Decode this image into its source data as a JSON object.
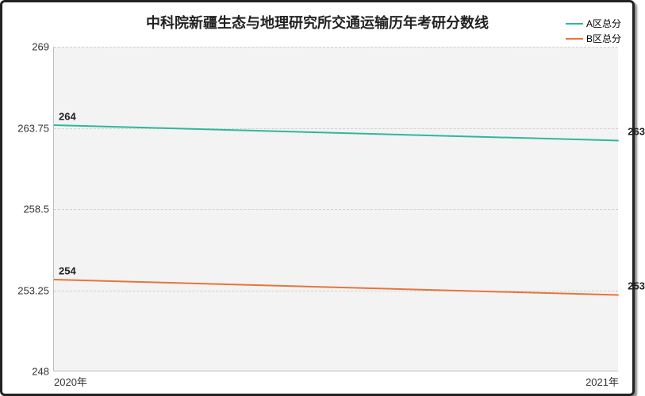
{
  "chart": {
    "type": "line",
    "title": "中科院新疆生态与地理研究所交通运输历年考研分数线",
    "title_fontsize": 18,
    "title_color": "#222222",
    "background_color": "#ffffff",
    "plot_background": "#f3f3f3",
    "outer_border_color": "#222222",
    "grid_color": "#d0d0d0",
    "axis_color": "#bdbdbd",
    "x": {
      "categories": [
        "2020年",
        "2021年"
      ]
    },
    "y": {
      "min": 248,
      "max": 269,
      "ticks": [
        248,
        253.25,
        258.5,
        263.75,
        269
      ]
    },
    "series": [
      {
        "name": "A区总分",
        "color": "#2fb89a",
        "values": [
          264,
          263
        ],
        "line_width": 2
      },
      {
        "name": "B区总分",
        "color": "#e8743b",
        "values": [
          254,
          253
        ],
        "line_width": 2
      }
    ],
    "label_fontsize": 13,
    "label_color": "#222222"
  }
}
